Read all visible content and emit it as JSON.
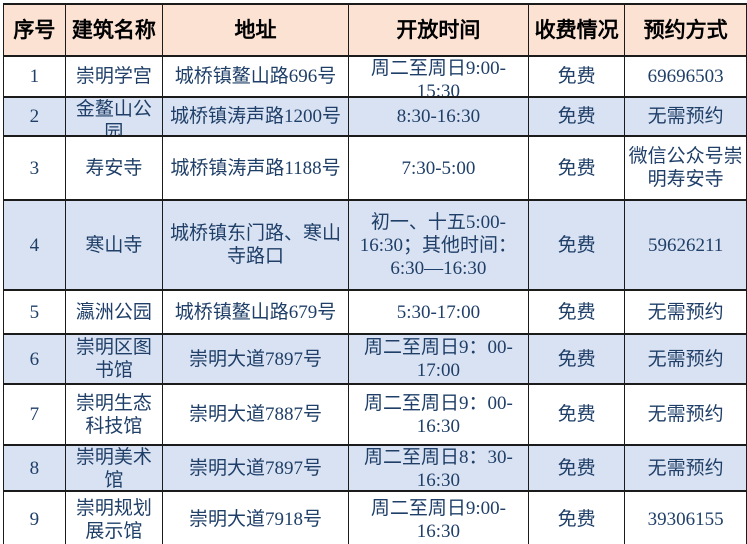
{
  "table": {
    "columns": [
      {
        "key": "num",
        "label": "序号"
      },
      {
        "key": "name",
        "label": "建筑名称"
      },
      {
        "key": "address",
        "label": "地址"
      },
      {
        "key": "hours",
        "label": "开放时间"
      },
      {
        "key": "fee",
        "label": "收费情况"
      },
      {
        "key": "booking",
        "label": "预约方式"
      }
    ],
    "rows": [
      {
        "num": "1",
        "name": "崇明学宫",
        "address": "城桥镇鳌山路696号",
        "hours": "周二至周日9:00-15:30",
        "fee": "免费",
        "booking": "69696503"
      },
      {
        "num": "2",
        "name": "金鳌山公园",
        "address": "城桥镇涛声路1200号",
        "hours": "8:30-16:30",
        "fee": "免费",
        "booking": "无需预约"
      },
      {
        "num": "3",
        "name": "寿安寺",
        "address": "城桥镇涛声路1188号",
        "hours": "7:30-5:00",
        "fee": "免费",
        "booking": "微信公众号崇明寿安寺"
      },
      {
        "num": "4",
        "name": "寒山寺",
        "address": "城桥镇东门路、寒山寺路口",
        "hours": "初一、十五5:00-16:30；其他时间：6:30—16:30",
        "fee": "免费",
        "booking": "59626211"
      },
      {
        "num": "5",
        "name": "瀛洲公园",
        "address": "城桥镇鳌山路679号",
        "hours": "5:30-17:00",
        "fee": "免费",
        "booking": "无需预约"
      },
      {
        "num": "6",
        "name": "崇明区图书馆",
        "address": "崇明大道7897号",
        "hours": "周二至周日9：00-17:00",
        "fee": "免费",
        "booking": "无需预约"
      },
      {
        "num": "7",
        "name": "崇明生态科技馆",
        "address": "崇明大道7887号",
        "hours": "周二至周日9：00-16:30",
        "fee": "免费",
        "booking": "无需预约"
      },
      {
        "num": "8",
        "name": "崇明美术馆",
        "address": "崇明大道7897号",
        "hours": "周二至周日8：30-16:30",
        "fee": "免费",
        "booking": "无需预约"
      },
      {
        "num": "9",
        "name": "崇明规划展示馆",
        "address": "崇明大道7918号",
        "hours": "周二至周日9:00-16:30",
        "fee": "免费",
        "booking": "39306155"
      }
    ]
  },
  "colors": {
    "header_bg": "#fbe2d3",
    "row_bg": "#ffffff",
    "row_alt_bg": "#d9e2f2",
    "body_text": "#1f3f68",
    "header_text": "#000000",
    "border": "#1b1b1b"
  }
}
